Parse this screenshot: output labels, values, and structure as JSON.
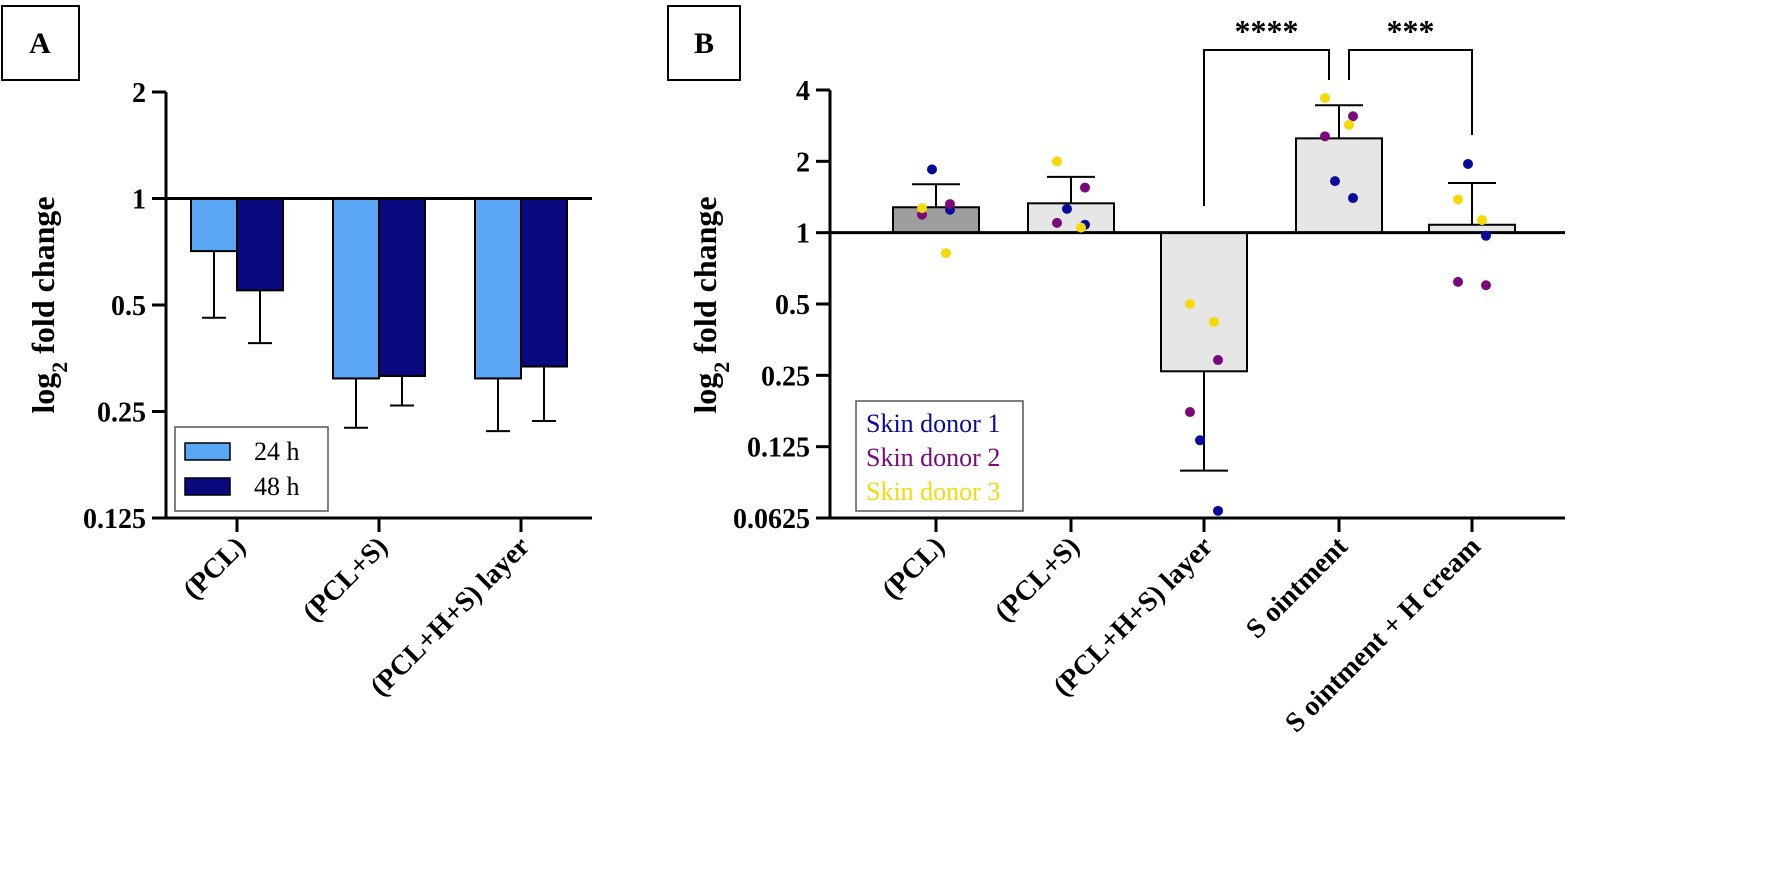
{
  "chart_data": [
    {
      "panel_label": "A",
      "type": "bar",
      "ylabel": "log",
      "ylabel_sub": "2",
      "ylabel_rest": " fold change",
      "y_scale": "log2",
      "ylim": [
        0.125,
        2
      ],
      "yticks": [
        0.125,
        0.25,
        0.5,
        1,
        2
      ],
      "ytick_labels": [
        "0.125",
        "0.25",
        "0.5",
        "1",
        "2"
      ],
      "baseline": 1,
      "categories": [
        "(PCL)",
        "(PCL+S)",
        "(PCL+H+S) layer"
      ],
      "series": [
        {
          "name": "24 h",
          "color": "#5aa6f5",
          "values": [
            0.71,
            0.31,
            0.31
          ],
          "error_low": [
            0.46,
            0.225,
            0.22
          ]
        },
        {
          "name": "48 h",
          "color": "#0a0a80",
          "values": [
            0.55,
            0.315,
            0.335
          ],
          "error_low": [
            0.39,
            0.26,
            0.235
          ]
        }
      ],
      "legend": {
        "position": "bottom-left",
        "entries": [
          "24 h",
          "48 h"
        ]
      }
    },
    {
      "panel_label": "B",
      "type": "bar",
      "ylabel": "log",
      "ylabel_sub": "2",
      "ylabel_rest": " fold change",
      "y_scale": "log2",
      "ylim": [
        0.0625,
        4
      ],
      "yticks": [
        0.0625,
        0.125,
        0.25,
        0.5,
        1,
        2,
        4
      ],
      "ytick_labels": [
        "0.0625",
        "0.125",
        "0.25",
        "0.5",
        "1",
        "2",
        "4"
      ],
      "baseline": 1,
      "categories": [
        "(PCL)",
        "(PCL+S)",
        "(PCL+H+S) layer",
        "S ointment",
        "S ointment + H cream"
      ],
      "values": [
        1.28,
        1.33,
        0.26,
        2.5,
        1.08
      ],
      "bar_colors": [
        "#9e9e9e",
        "#e6e6e6",
        "#e6e6e6",
        "#e6e6e6",
        "#e6e6e6"
      ],
      "error_high": [
        1.6,
        1.72,
        null,
        3.45,
        1.62
      ],
      "error_low": [
        null,
        null,
        0.099,
        null,
        null
      ],
      "points": [
        {
          "category": 0,
          "donor": 1,
          "value": 1.85
        },
        {
          "category": 0,
          "donor": 1,
          "value": 1.25
        },
        {
          "category": 0,
          "donor": 2,
          "value": 1.32
        },
        {
          "category": 0,
          "donor": 2,
          "value": 1.19
        },
        {
          "category": 0,
          "donor": 3,
          "value": 1.27
        },
        {
          "category": 0,
          "donor": 3,
          "value": 0.82
        },
        {
          "category": 1,
          "donor": 1,
          "value": 1.26
        },
        {
          "category": 1,
          "donor": 1,
          "value": 1.08
        },
        {
          "category": 1,
          "donor": 2,
          "value": 1.55
        },
        {
          "category": 1,
          "donor": 2,
          "value": 1.1
        },
        {
          "category": 1,
          "donor": 3,
          "value": 2.0
        },
        {
          "category": 1,
          "donor": 3,
          "value": 1.05
        },
        {
          "category": 2,
          "donor": 1,
          "value": 0.133
        },
        {
          "category": 2,
          "donor": 1,
          "value": 0.067
        },
        {
          "category": 2,
          "donor": 2,
          "value": 0.29
        },
        {
          "category": 2,
          "donor": 2,
          "value": 0.175
        },
        {
          "category": 2,
          "donor": 3,
          "value": 0.5
        },
        {
          "category": 2,
          "donor": 3,
          "value": 0.42
        },
        {
          "category": 3,
          "donor": 1,
          "value": 1.65
        },
        {
          "category": 3,
          "donor": 1,
          "value": 1.4
        },
        {
          "category": 3,
          "donor": 2,
          "value": 3.1
        },
        {
          "category": 3,
          "donor": 2,
          "value": 2.55
        },
        {
          "category": 3,
          "donor": 3,
          "value": 3.7
        },
        {
          "category": 3,
          "donor": 3,
          "value": 2.85
        },
        {
          "category": 4,
          "donor": 1,
          "value": 1.95
        },
        {
          "category": 4,
          "donor": 1,
          "value": 0.97
        },
        {
          "category": 4,
          "donor": 2,
          "value": 0.6
        },
        {
          "category": 4,
          "donor": 2,
          "value": 0.62
        },
        {
          "category": 4,
          "donor": 3,
          "value": 1.38
        },
        {
          "category": 4,
          "donor": 3,
          "value": 1.13
        }
      ],
      "donors": [
        {
          "id": 1,
          "name": "Skin donor 1",
          "color": "#0a0a9a"
        },
        {
          "id": 2,
          "name": "Skin donor 2",
          "color": "#7a0a7a"
        },
        {
          "id": 3,
          "name": "Skin donor 3",
          "color": "#f5d90a"
        }
      ],
      "legend": {
        "position": "bottom-left"
      },
      "significance": [
        {
          "from": 2,
          "to": 3,
          "label": "****"
        },
        {
          "from": 3,
          "to": 4,
          "label": "***"
        }
      ]
    }
  ]
}
